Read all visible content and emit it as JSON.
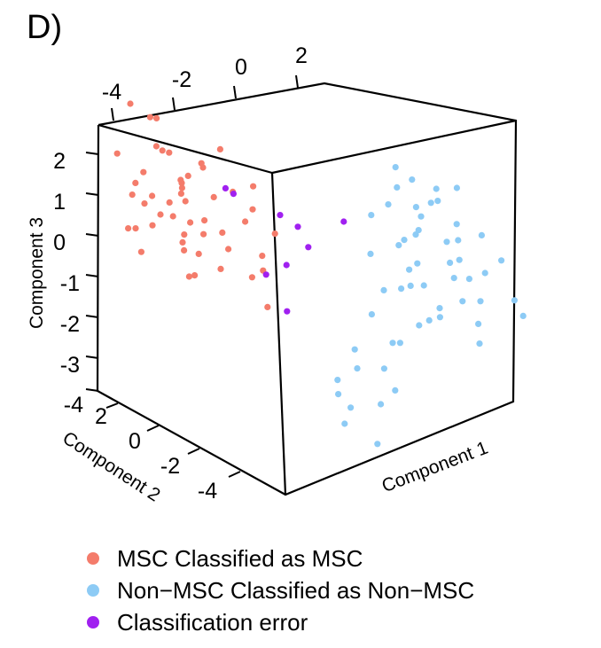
{
  "panel_label": "D)",
  "colors": {
    "msc": "#F47C6B",
    "non_msc": "#8DCBF5",
    "error": "#A020F0"
  },
  "chart_data": {
    "type": "scatter",
    "title": "",
    "axes": {
      "x": {
        "label": "Component 1",
        "ticks": []
      },
      "y": {
        "label": "Component 2",
        "ticks": [
          "2",
          "0",
          "-2",
          "-4"
        ]
      },
      "z": {
        "label": "Component 3",
        "ticks": [
          "2",
          "1",
          "0",
          "-1",
          "-2",
          "-3",
          "-4"
        ]
      },
      "top": {
        "ticks": [
          "-4",
          "-2",
          "0",
          "2"
        ]
      }
    },
    "legend": {
      "placement": "bottom",
      "entries": [
        "MSC Classified as MSC",
        "Non−MSC Classified as Non−MSC",
        "Classification error"
      ]
    },
    "series": [
      {
        "name": "MSC Classified as MSC",
        "color": "#F47C6B",
        "points": [
          [
            -3.4,
            1.6,
            2.5
          ],
          [
            -3.0,
            1.2,
            2.3
          ],
          [
            -2.8,
            2.0,
            2.1
          ],
          [
            -3.3,
            0.5,
            1.8
          ],
          [
            -3.0,
            0.9,
            1.6
          ],
          [
            -2.6,
            1.5,
            1.4
          ],
          [
            -3.6,
            1.8,
            1.2
          ],
          [
            -2.9,
            0.2,
            1.1
          ],
          [
            -2.4,
            1.0,
            1.0
          ],
          [
            -3.2,
            1.4,
            0.9
          ],
          [
            -2.7,
            0.6,
            0.8
          ],
          [
            -3.5,
            1.1,
            0.7
          ],
          [
            -2.2,
            1.8,
            0.6
          ],
          [
            -3.1,
            0.3,
            0.5
          ],
          [
            -2.5,
            0.9,
            0.4
          ],
          [
            -3.4,
            1.5,
            0.3
          ],
          [
            -2.8,
            1.9,
            0.2
          ],
          [
            -2.3,
            0.4,
            0.1
          ],
          [
            -3.0,
            1.0,
            0.0
          ],
          [
            -2.6,
            1.3,
            -0.1
          ],
          [
            -3.3,
            0.7,
            -0.2
          ],
          [
            -2.1,
            1.6,
            -0.3
          ],
          [
            -2.9,
            0.1,
            -0.4
          ],
          [
            -2.4,
            1.2,
            -0.5
          ],
          [
            -3.2,
            1.8,
            -0.6
          ],
          [
            -2.7,
            0.5,
            -0.7
          ],
          [
            -3.5,
            0.8,
            -0.9
          ],
          [
            -2.0,
            1.4,
            -1.0
          ],
          [
            -2.8,
            0.0,
            -1.2
          ],
          [
            -2.3,
            0.9,
            -1.4
          ],
          [
            -1.8,
            1.1,
            0.5
          ],
          [
            -1.6,
            0.6,
            0.8
          ],
          [
            -1.9,
            1.5,
            1.2
          ],
          [
            -1.5,
            0.2,
            0.2
          ],
          [
            -1.7,
            0.9,
            -0.3
          ],
          [
            -1.4,
            1.3,
            -0.8
          ],
          [
            -1.2,
            0.5,
            1.0
          ],
          [
            -1.0,
            1.0,
            0.3
          ],
          [
            -1.3,
            -0.2,
            -0.5
          ],
          [
            -0.9,
            0.7,
            -1.1
          ],
          [
            -2.0,
            0.3,
            1.9
          ],
          [
            -2.5,
            0.0,
            1.5
          ],
          [
            -3.1,
            -0.3,
            0.9
          ],
          [
            -2.7,
            -0.5,
            0.0
          ],
          [
            -2.2,
            -0.2,
            -0.9
          ],
          [
            -0.8,
            1.5,
            -1.5
          ],
          [
            -1.1,
            0.0,
            -1.8
          ],
          [
            -0.6,
            0.8,
            -0.2
          ],
          [
            -3.6,
            0.4,
            0.4
          ],
          [
            -3.7,
            1.0,
            -0.4
          ]
        ]
      },
      {
        "name": "Non−MSC Classified as Non−MSC",
        "color": "#8DCBF5",
        "points": [
          [
            1.0,
            -1.6,
            2.3
          ],
          [
            1.4,
            -1.5,
            2.0
          ],
          [
            1.8,
            -1.8,
            1.9
          ],
          [
            1.2,
            -1.2,
            1.7
          ],
          [
            1.6,
            -2.0,
            1.6
          ],
          [
            2.0,
            -1.4,
            1.5
          ],
          [
            0.8,
            -1.7,
            1.4
          ],
          [
            1.3,
            -2.2,
            1.3
          ],
          [
            1.7,
            -1.0,
            1.2
          ],
          [
            2.2,
            -1.9,
            1.1
          ],
          [
            0.6,
            -1.3,
            1.0
          ],
          [
            1.1,
            -2.4,
            0.9
          ],
          [
            1.5,
            -1.6,
            0.8
          ],
          [
            1.9,
            -2.1,
            0.7
          ],
          [
            2.4,
            -1.5,
            0.6
          ],
          [
            0.9,
            -2.0,
            0.5
          ],
          [
            1.4,
            -1.1,
            0.4
          ],
          [
            1.8,
            -2.5,
            0.3
          ],
          [
            2.3,
            -1.8,
            0.2
          ],
          [
            0.5,
            -1.5,
            0.1
          ],
          [
            1.0,
            -2.3,
            0.0
          ],
          [
            1.6,
            -1.3,
            -0.1
          ],
          [
            2.1,
            -2.0,
            -0.2
          ],
          [
            2.6,
            -1.6,
            -0.3
          ],
          [
            0.7,
            -2.6,
            -0.4
          ],
          [
            1.2,
            -1.9,
            -0.5
          ],
          [
            1.7,
            -1.4,
            -0.6
          ],
          [
            2.2,
            -2.2,
            -0.7
          ],
          [
            2.8,
            -1.7,
            -0.8
          ],
          [
            1.0,
            -1.0,
            -0.9
          ],
          [
            1.5,
            -2.7,
            -1.0
          ],
          [
            2.0,
            -1.5,
            -1.1
          ],
          [
            2.5,
            -2.3,
            -1.2
          ],
          [
            0.4,
            -1.8,
            -1.3
          ],
          [
            1.3,
            -2.1,
            -1.4
          ],
          [
            1.9,
            -1.2,
            -1.5
          ],
          [
            2.4,
            -2.6,
            -1.6
          ],
          [
            0.6,
            -2.4,
            -1.8
          ],
          [
            1.1,
            -1.6,
            -2.0
          ],
          [
            3.6,
            -2.0,
            -1.0
          ],
          [
            0.2,
            -1.4,
            -2.3
          ],
          [
            0.0,
            -2.0,
            -2.6
          ],
          [
            -0.3,
            -1.7,
            -3.0
          ],
          [
            0.3,
            -2.5,
            -3.3
          ],
          [
            -0.1,
            -1.9,
            -3.6
          ],
          [
            0.4,
            -3.0,
            -2.8
          ],
          [
            -0.4,
            -2.3,
            -3.9
          ],
          [
            0.1,
            -2.8,
            -4.2
          ],
          [
            -0.2,
            -1.5,
            -3.4
          ],
          [
            0.5,
            -2.2,
            -2.5
          ],
          [
            2.7,
            -2.0,
            0.9
          ],
          [
            3.0,
            -2.3,
            0.4
          ],
          [
            2.9,
            -1.7,
            -0.1
          ],
          [
            3.2,
            -2.5,
            -0.5
          ],
          [
            2.5,
            -1.2,
            1.8
          ]
        ]
      },
      {
        "name": "Classification error",
        "color": "#A020F0",
        "points": [
          [
            -1.8,
            0.5,
            0.9
          ],
          [
            -1.5,
            0.8,
            0.7
          ],
          [
            -0.7,
            0.3,
            0.4
          ],
          [
            -0.4,
            0.1,
            0.2
          ],
          [
            -0.3,
            -0.2,
            -0.2
          ],
          [
            -0.9,
            -0.5,
            -0.6
          ],
          [
            -1.3,
            -0.4,
            -0.9
          ],
          [
            -1.1,
            -1.0,
            -1.6
          ],
          [
            0.3,
            -0.6,
            0.6
          ]
        ]
      }
    ]
  }
}
